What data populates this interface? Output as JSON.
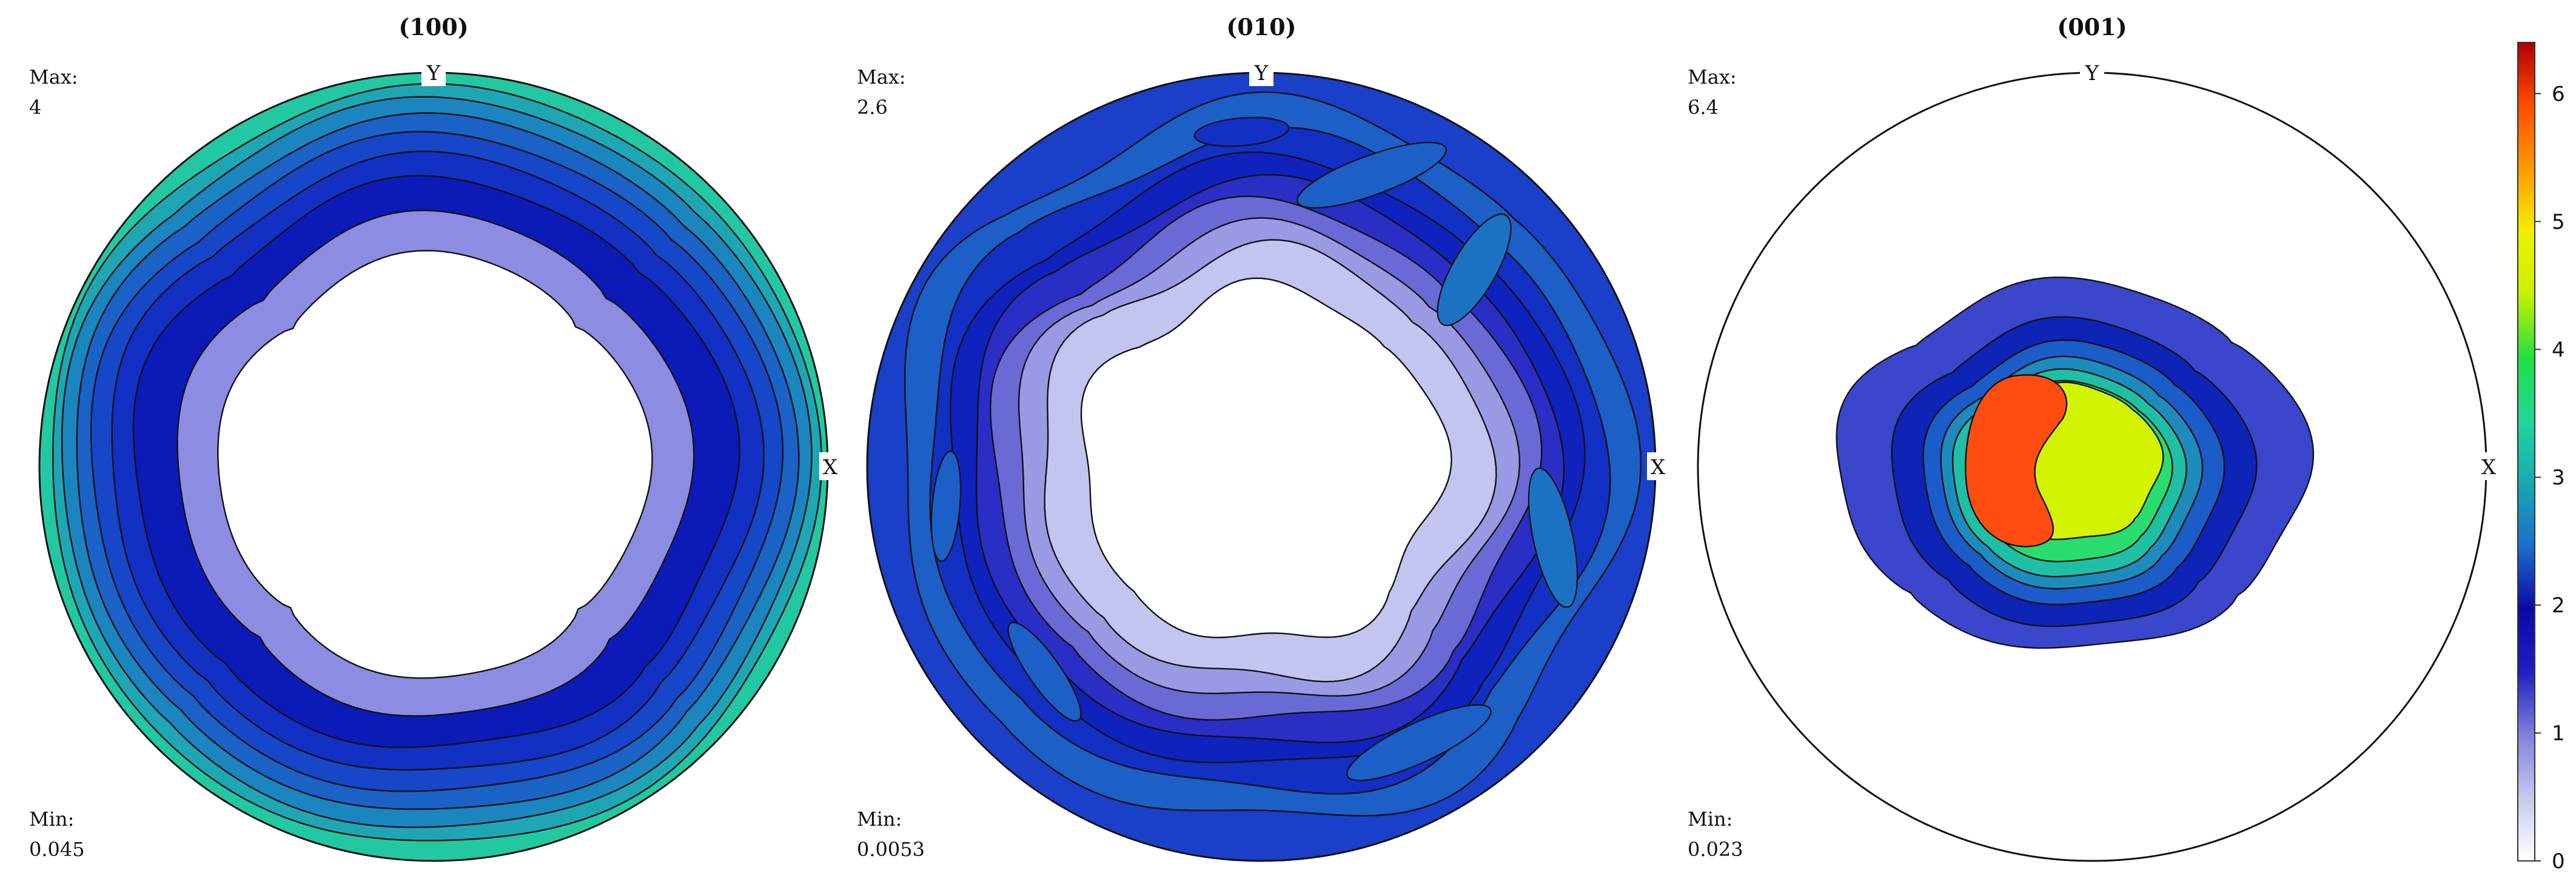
{
  "chart_data": {
    "type": "heatmap",
    "subtype": "pole-figure",
    "projection": "stereographic",
    "axes_labels": {
      "x": "X",
      "y": "Y"
    },
    "colorbar": {
      "min": 0,
      "max": 6.4,
      "ticks": [
        0,
        1,
        2,
        3,
        4,
        5,
        6
      ],
      "tick_labels": [
        "0",
        "1",
        "2",
        "3",
        "4",
        "5",
        "6"
      ],
      "colormap_stops": [
        "#ffffff",
        "#c8c8ee",
        "#8080dd",
        "#2020c0",
        "#0a0aa8",
        "#1e6fc8",
        "#1aa8b0",
        "#20d79a",
        "#20e040",
        "#c8f000",
        "#f0f000",
        "#ff9a00",
        "#ff4d00",
        "#b00000"
      ]
    },
    "panels": [
      {
        "id": "100",
        "title": "(100)",
        "max_label": "Max:",
        "max_value": "4",
        "min_label": "Min:",
        "min_value": "0.045",
        "max_density": 4,
        "min_density": 0.045,
        "pattern": "ring-high-at-rim",
        "contours": [
          {
            "level": 3.2,
            "color": "#22c8a2",
            "radius": 1.0,
            "squareness": 0.0,
            "mod": 0.0,
            "phase": 0,
            "sx": 1.0,
            "sy": 1.0
          },
          {
            "level": 2.8,
            "color": "#1fa6b4",
            "radius": 0.975,
            "squareness": 0.0,
            "mod": 0.01,
            "phase": 30,
            "sx": 1.0,
            "sy": 0.985
          },
          {
            "level": 2.4,
            "color": "#1b85bf",
            "radius": 0.95,
            "squareness": 0.02,
            "mod": 0.012,
            "phase": 10,
            "sx": 1.0,
            "sy": 0.975
          },
          {
            "level": 2.0,
            "color": "#1a62c6",
            "radius": 0.915,
            "squareness": 0.03,
            "mod": 0.014,
            "phase": 20,
            "sx": 1.0,
            "sy": 0.965
          },
          {
            "level": 1.6,
            "color": "#1647c8",
            "radius": 0.875,
            "squareness": 0.04,
            "mod": 0.016,
            "phase": 5,
            "sx": 1.0,
            "sy": 0.955
          },
          {
            "level": 1.2,
            "color": "#1230c4",
            "radius": 0.825,
            "squareness": 0.05,
            "mod": 0.018,
            "phase": 15,
            "sx": 1.0,
            "sy": 0.95
          },
          {
            "level": 0.8,
            "color": "#0c1ab8",
            "radius": 0.765,
            "squareness": 0.06,
            "mod": 0.02,
            "phase": 0,
            "sx": 1.0,
            "sy": 0.945
          },
          {
            "level": 0.4,
            "color": "#8c8ce2",
            "radius": 0.66,
            "squareness": 0.1,
            "mod": 0.015,
            "phase": 0,
            "sx": 0.99,
            "sy": 0.97
          },
          {
            "level": 0.2,
            "color": "#ffffff",
            "radius": 0.55,
            "squareness": 0.14,
            "mod": 0.012,
            "phase": 0,
            "sx": 1.0,
            "sy": 0.985
          }
        ]
      },
      {
        "id": "010",
        "title": "(010)",
        "max_label": "Max:",
        "max_value": "2.6",
        "min_label": "Min:",
        "min_value": "0.0053",
        "max_density": 2.6,
        "min_density": 0.0053,
        "pattern": "ring-wavy-with-rim-lobes",
        "contours": [
          {
            "level": 1.1,
            "color": "#1a3fc9",
            "radius": 1.0,
            "squareness": 0.0,
            "mod": 0.0,
            "phase": 0,
            "sx": 1.0,
            "sy": 1.0
          },
          {
            "level": 1.3,
            "color": "#1c5fc6",
            "radius": 0.93,
            "squareness": 0.02,
            "mod": 0.035,
            "phase": 40,
            "sx": 1.0,
            "sy": 0.98
          },
          {
            "level": 1.0,
            "color": "#1230c4",
            "radius": 0.86,
            "squareness": 0.03,
            "mod": 0.03,
            "phase": 70,
            "sx": 1.0,
            "sy": 0.97
          },
          {
            "level": 0.9,
            "color": "#0f22bd",
            "radius": 0.8,
            "squareness": 0.04,
            "mod": 0.028,
            "phase": 20,
            "sx": 1.0,
            "sy": 0.965
          },
          {
            "level": 0.7,
            "color": "#2a2ec4",
            "radius": 0.745,
            "squareness": 0.05,
            "mod": 0.03,
            "phase": 50,
            "sx": 1.0,
            "sy": 0.96
          },
          {
            "level": 0.55,
            "color": "#6a6ad6",
            "radius": 0.69,
            "squareness": 0.06,
            "mod": 0.035,
            "phase": 10,
            "sx": 1.0,
            "sy": 0.955
          },
          {
            "level": 0.4,
            "color": "#9a9ae4",
            "radius": 0.63,
            "squareness": 0.06,
            "mod": 0.04,
            "phase": 35,
            "sx": 1.0,
            "sy": 0.955
          },
          {
            "level": 0.25,
            "color": "#c4c4f0",
            "radius": 0.57,
            "squareness": 0.06,
            "mod": 0.045,
            "phase": 60,
            "sx": 1.0,
            "sy": 0.96
          },
          {
            "level": 0.1,
            "color": "#ffffff",
            "radius": 0.46,
            "squareness": 0.05,
            "mod": 0.05,
            "phase": 25,
            "sx": 1.0,
            "sy": 0.98
          }
        ],
        "lobes": [
          {
            "cx": 0.54,
            "cy": -0.5,
            "rx": 0.16,
            "ry": 0.055,
            "rot": -60,
            "color": "#1c72c2"
          },
          {
            "cx": 0.74,
            "cy": 0.18,
            "rx": 0.18,
            "ry": 0.05,
            "rot": 78,
            "color": "#1c72c2"
          },
          {
            "cx": 0.28,
            "cy": -0.74,
            "rx": 0.2,
            "ry": 0.05,
            "rot": -20,
            "color": "#1c5fc6"
          },
          {
            "cx": -0.8,
            "cy": 0.1,
            "rx": 0.14,
            "ry": 0.035,
            "rot": 95,
            "color": "#1c5fc6"
          },
          {
            "cx": -0.55,
            "cy": 0.52,
            "rx": 0.15,
            "ry": 0.04,
            "rot": 55,
            "color": "#1c5fc6"
          },
          {
            "cx": 0.4,
            "cy": 0.7,
            "rx": 0.2,
            "ry": 0.05,
            "rot": -25,
            "color": "#1c5fc6"
          },
          {
            "cx": -0.05,
            "cy": -0.85,
            "rx": 0.12,
            "ry": 0.035,
            "rot": -5,
            "color": "#1230c4"
          }
        ]
      },
      {
        "id": "001",
        "title": "(001)",
        "max_label": "Max:",
        "max_value": "6.4",
        "min_label": "Min:",
        "min_value": "0.023",
        "max_density": 6.4,
        "min_density": 0.023,
        "pattern": "central-peak",
        "contours": [
          {
            "level": 0.0,
            "color": "#ffffff",
            "radius": 1.0,
            "squareness": 0.0,
            "mod": 0.0,
            "phase": 0,
            "sx": 1.0,
            "sy": 1.0
          },
          {
            "level": 1.2,
            "color": "#3a46cc",
            "radius": 0.6,
            "squareness": 0.08,
            "mod": 0.025,
            "phase": 0,
            "sx": 1.0,
            "sy": 0.78,
            "dx": -0.05,
            "dy": 0.0
          },
          {
            "level": 1.6,
            "color": "#0e24b6",
            "radius": 0.46,
            "squareness": 0.08,
            "mod": 0.022,
            "phase": 0,
            "sx": 1.0,
            "sy": 0.85,
            "dx": -0.05,
            "dy": 0.02
          },
          {
            "level": 2.0,
            "color": "#1b5cc8",
            "radius": 0.38,
            "squareness": 0.06,
            "mod": 0.02,
            "phase": 0,
            "sx": 1.0,
            "sy": 0.88,
            "dx": -0.05,
            "dy": 0.02
          },
          {
            "level": 2.6,
            "color": "#1d8cbc",
            "radius": 0.33,
            "squareness": 0.06,
            "mod": 0.02,
            "phase": 0,
            "sx": 1.0,
            "sy": 0.89,
            "dx": -0.055,
            "dy": 0.02
          },
          {
            "level": 3.4,
            "color": "#1fbfa6",
            "radius": 0.295,
            "squareness": 0.05,
            "mod": 0.02,
            "phase": 0,
            "sx": 1.0,
            "sy": 0.89,
            "dx": -0.06,
            "dy": 0.02
          },
          {
            "level": 4.0,
            "color": "#28dc6e",
            "radius": 0.26,
            "squareness": 0.05,
            "mod": 0.02,
            "phase": 0,
            "sx": 1.0,
            "sy": 0.88,
            "dx": -0.06,
            "dy": 0.015
          },
          {
            "level": 5.0,
            "color": "#d2f400",
            "radius": 0.23,
            "squareness": 0.05,
            "mod": 0.03,
            "phase": 0,
            "sx": 1.0,
            "sy": 0.86,
            "dx": -0.055,
            "dy": -0.01
          }
        ],
        "peak": {
          "level": 6.0,
          "color": "#ff4d12",
          "cx": -0.12,
          "cy": 0.0,
          "note": "bean-shaped maximum left of center"
        }
      }
    ]
  }
}
